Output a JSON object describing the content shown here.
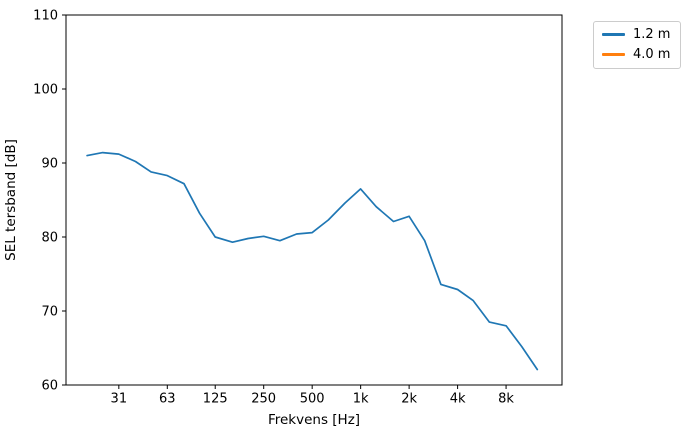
{
  "figure": {
    "background": "#ffffff",
    "axes_edge_color": "#000000"
  },
  "chart_data": {
    "type": "line",
    "xscale": "log",
    "grid": false,
    "title": "",
    "xlabel": "Frekvens [Hz]",
    "ylabel": "SEL tersband [dB]",
    "xlim": [
      14.8,
      17800
    ],
    "ylim": [
      60,
      110
    ],
    "yticks": [
      60,
      70,
      80,
      90,
      100,
      110
    ],
    "xticks": [
      {
        "value": 31.5,
        "label": "31"
      },
      {
        "value": 63,
        "label": "63"
      },
      {
        "value": 125,
        "label": "125"
      },
      {
        "value": 250,
        "label": "250"
      },
      {
        "value": 500,
        "label": "500"
      },
      {
        "value": 1000,
        "label": "1k"
      },
      {
        "value": 2000,
        "label": "2k"
      },
      {
        "value": 4000,
        "label": "4k"
      },
      {
        "value": 8000,
        "label": "8k"
      }
    ],
    "x": [
      20,
      25,
      31.5,
      40,
      50,
      63,
      80,
      100,
      125,
      160,
      200,
      250,
      315,
      400,
      500,
      630,
      800,
      1000,
      1250,
      1600,
      2000,
      2500,
      3150,
      4000,
      5000,
      6300,
      8000,
      10000,
      12500
    ],
    "series": [
      {
        "name": "1.2 m",
        "color": "#1f77b4",
        "values": [
          91.0,
          91.4,
          91.2,
          90.2,
          88.8,
          88.3,
          87.2,
          83.2,
          80.0,
          79.3,
          79.8,
          80.1,
          79.5,
          80.4,
          80.6,
          82.3,
          84.6,
          86.5,
          84.1,
          82.1,
          82.8,
          79.5,
          73.6,
          72.9,
          71.4,
          68.5,
          68.0,
          65.2,
          62.1
        ]
      },
      {
        "name": "4.0 m",
        "color": "#ff7f0e",
        "values": []
      }
    ],
    "legend": {
      "position": "outside-upper-right",
      "entries": [
        "1.2 m",
        "4.0 m"
      ]
    }
  }
}
